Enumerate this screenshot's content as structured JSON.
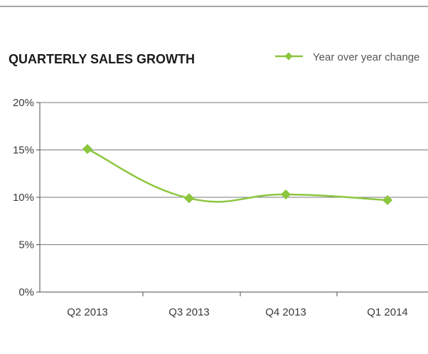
{
  "chart_data": {
    "type": "line",
    "title": "QUARTERLY SALES GROWTH",
    "xlabel": "",
    "ylabel": "",
    "categories": [
      "Q2 2013",
      "Q3 2013",
      "Q4 2013",
      "Q1 2014"
    ],
    "series": [
      {
        "name": "Year over year change",
        "values": [
          15.1,
          9.9,
          10.3,
          9.7
        ]
      }
    ],
    "ylim": [
      0,
      20
    ],
    "yticks": [
      "0%",
      "5%",
      "10%",
      "15%",
      "20%"
    ],
    "grid": true,
    "legend": "top-right",
    "colors": {
      "series": "#8cc63f",
      "grid": "#7a7a7a",
      "rule": "#4d4d4d",
      "text": "#3a3a3a"
    }
  }
}
